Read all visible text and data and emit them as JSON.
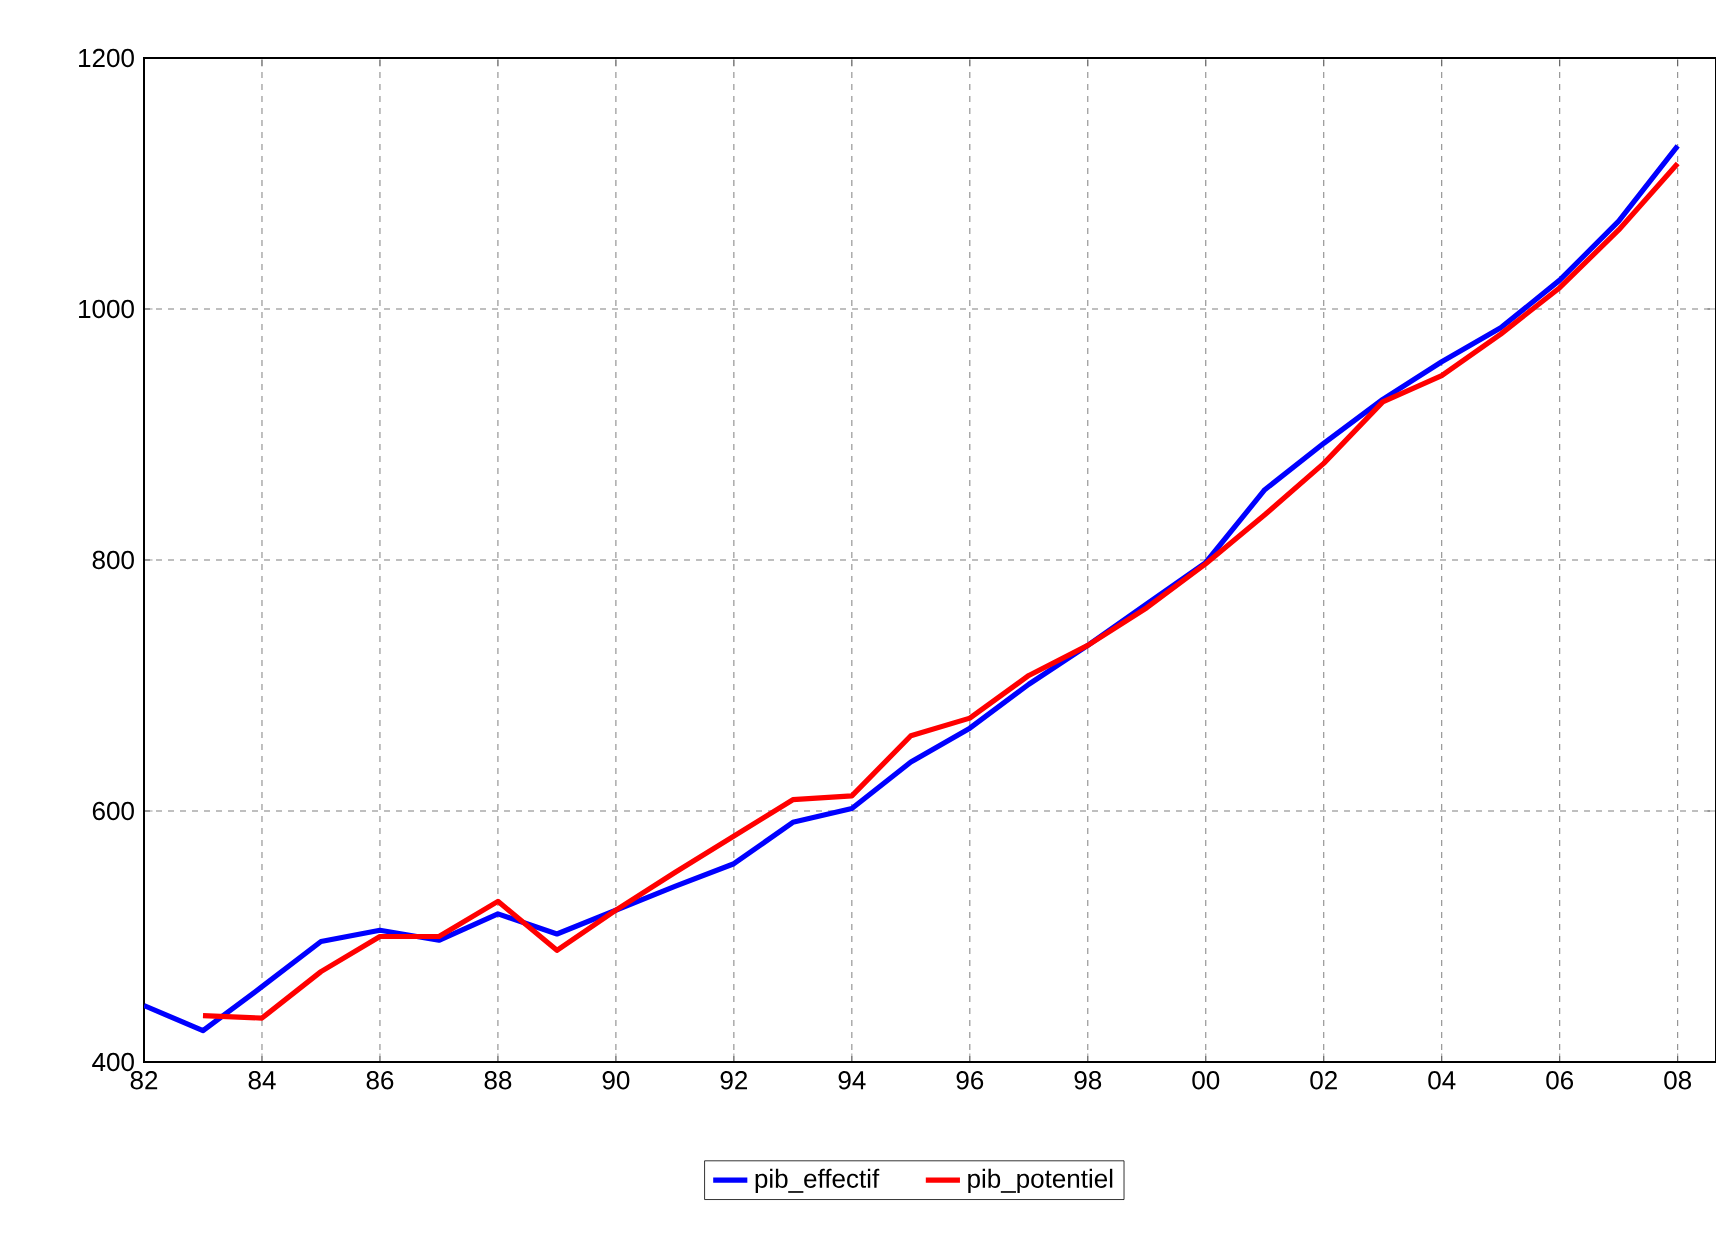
{
  "chart_data": {
    "type": "line",
    "x": [
      1982,
      1983,
      1984,
      1985,
      1986,
      1987,
      1988,
      1989,
      1990,
      1991,
      1992,
      1993,
      1994,
      1995,
      1996,
      1997,
      1998,
      1999,
      2000,
      2001,
      2002,
      2003,
      2004,
      2005,
      2006,
      2007,
      2008
    ],
    "series": [
      {
        "name": "pib_effectif",
        "color": "#0000ff",
        "values": [
          445,
          425,
          460,
          496,
          505,
          497,
          518,
          502,
          521,
          540,
          558,
          591,
          602,
          639,
          666,
          701,
          732,
          765,
          798,
          856,
          893,
          928,
          958,
          985,
          1023,
          1070,
          1130
        ]
      },
      {
        "name": "pib_potentiel",
        "color": "#ff0000",
        "values": [
          null,
          437,
          435,
          472,
          500,
          500,
          528,
          489,
          521,
          551,
          580,
          609,
          612,
          660,
          674,
          708,
          732,
          762,
          797,
          836,
          877,
          926,
          947,
          980,
          1017,
          1063,
          1116
        ]
      }
    ],
    "xlim": [
      1982,
      2008.65
    ],
    "xticks": [
      {
        "value": 1982,
        "label": "82"
      },
      {
        "value": 1984,
        "label": "84"
      },
      {
        "value": 1986,
        "label": "86"
      },
      {
        "value": 1988,
        "label": "88"
      },
      {
        "value": 1990,
        "label": "90"
      },
      {
        "value": 1992,
        "label": "92"
      },
      {
        "value": 1994,
        "label": "94"
      },
      {
        "value": 1996,
        "label": "96"
      },
      {
        "value": 1998,
        "label": "98"
      },
      {
        "value": 2000,
        "label": "00"
      },
      {
        "value": 2002,
        "label": "02"
      },
      {
        "value": 2004,
        "label": "04"
      },
      {
        "value": 2006,
        "label": "06"
      },
      {
        "value": 2008,
        "label": "08"
      }
    ],
    "ylim": [
      400,
      1200
    ],
    "yticks": [
      400,
      600,
      800,
      1000,
      1200
    ],
    "grid": true,
    "legend": "bottom",
    "line_style": "solid"
  }
}
